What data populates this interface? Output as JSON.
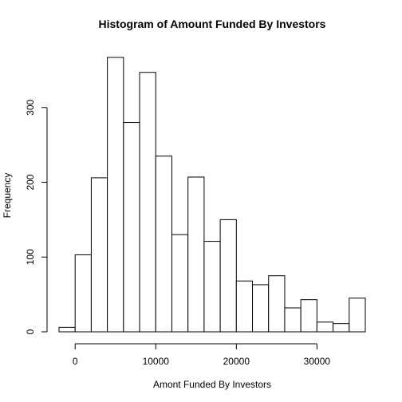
{
  "chart_data": {
    "type": "bar",
    "title": "Histogram of Amount Funded By Investors",
    "xlabel": "Amont Funded By Investors",
    "ylabel": "Frequency",
    "bin_width": 2000,
    "bins": [
      {
        "start": -2000,
        "end": 0,
        "count": 6
      },
      {
        "start": 0,
        "end": 2000,
        "count": 103
      },
      {
        "start": 2000,
        "end": 4000,
        "count": 206
      },
      {
        "start": 4000,
        "end": 6000,
        "count": 367
      },
      {
        "start": 6000,
        "end": 8000,
        "count": 280
      },
      {
        "start": 8000,
        "end": 10000,
        "count": 347
      },
      {
        "start": 10000,
        "end": 12000,
        "count": 235
      },
      {
        "start": 12000,
        "end": 14000,
        "count": 130
      },
      {
        "start": 14000,
        "end": 16000,
        "count": 207
      },
      {
        "start": 16000,
        "end": 18000,
        "count": 121
      },
      {
        "start": 18000,
        "end": 20000,
        "count": 150
      },
      {
        "start": 20000,
        "end": 22000,
        "count": 68
      },
      {
        "start": 22000,
        "end": 24000,
        "count": 63
      },
      {
        "start": 24000,
        "end": 26000,
        "count": 75
      },
      {
        "start": 26000,
        "end": 28000,
        "count": 32
      },
      {
        "start": 28000,
        "end": 30000,
        "count": 43
      },
      {
        "start": 30000,
        "end": 32000,
        "count": 13
      },
      {
        "start": 32000,
        "end": 34000,
        "count": 11
      },
      {
        "start": 34000,
        "end": 36000,
        "count": 45
      }
    ],
    "x_ticks": [
      0,
      10000,
      20000,
      30000
    ],
    "x_tick_labels": [
      "0",
      "10000",
      "20000",
      "30000"
    ],
    "y_ticks": [
      0,
      100,
      200,
      300
    ],
    "y_tick_labels": [
      "0",
      "100",
      "200",
      "300"
    ],
    "xlim": [
      -2000,
      36000
    ],
    "ylim": [
      0,
      367
    ],
    "grid": false,
    "bar_fill": "#ffffff",
    "bar_stroke": "#000000"
  }
}
